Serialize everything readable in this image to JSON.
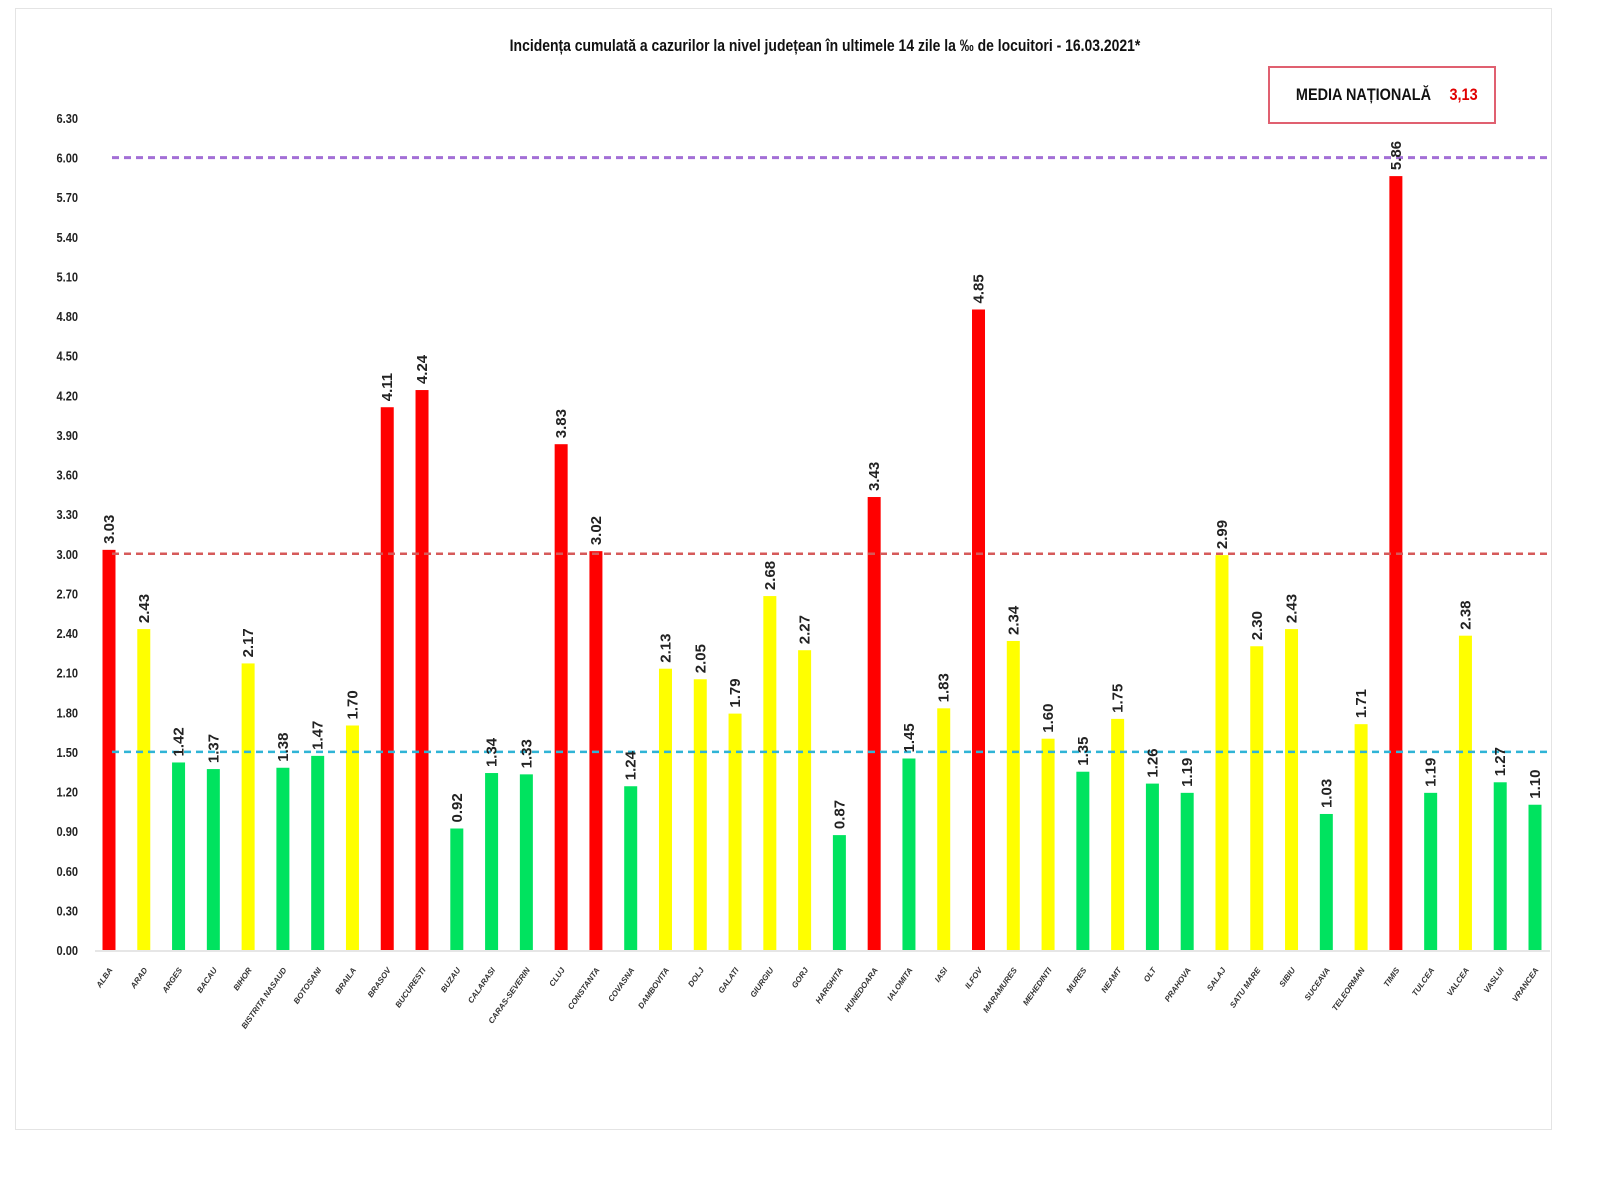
{
  "chart_data": {
    "type": "bar",
    "title": "Incidența cumulată a cazurilor la nivel județean în ultimele 14 zile la ‰ de locuitori - 16.03.2021*",
    "xlabel": "",
    "ylabel": "",
    "ylim": [
      0,
      6.3
    ],
    "yticks": [
      "0.00",
      "0.30",
      "0.60",
      "0.90",
      "1.20",
      "1.50",
      "1.80",
      "2.10",
      "2.40",
      "2.70",
      "3.00",
      "3.30",
      "3.60",
      "3.90",
      "4.20",
      "4.50",
      "4.80",
      "5.10",
      "5.40",
      "5.70",
      "6.00",
      "6.30"
    ],
    "categories": [
      "ALBA",
      "ARAD",
      "ARGES",
      "BACAU",
      "BIHOR",
      "BISTRITA NASAUD",
      "BOTOSANI",
      "BRAILA",
      "BRASOV",
      "BUCURESTI",
      "BUZAU",
      "CALARASI",
      "CARAS-SEVERIN",
      "CLUJ",
      "CONSTANTA",
      "COVASNA",
      "DAMBOVITA",
      "DOLJ",
      "GALATI",
      "GIURGIU",
      "GORJ",
      "HARGHITA",
      "HUNEDOARA",
      "IALOMITA",
      "IASI",
      "ILFOV",
      "MARAMURES",
      "MEHEDINTI",
      "MURES",
      "NEAMT",
      "OLT",
      "PRAHOVA",
      "SALAJ",
      "SATU MARE",
      "SIBIU",
      "SUCEAVA",
      "TELEORMAN",
      "TIMIS",
      "TULCEA",
      "VALCEA",
      "VASLUI",
      "VRANCEA"
    ],
    "values": [
      3.03,
      2.43,
      1.42,
      1.37,
      2.17,
      1.38,
      1.47,
      1.7,
      4.11,
      4.24,
      0.92,
      1.34,
      1.33,
      3.83,
      3.02,
      1.24,
      2.13,
      2.05,
      1.79,
      2.68,
      2.27,
      0.87,
      3.43,
      1.45,
      1.83,
      4.85,
      2.34,
      1.6,
      1.35,
      1.75,
      1.26,
      1.19,
      2.99,
      2.3,
      2.43,
      1.03,
      1.71,
      5.86,
      1.19,
      2.38,
      1.27,
      1.1
    ],
    "thresholds": [
      {
        "value": 6.0,
        "color": "#a36fd6"
      },
      {
        "value": 3.0,
        "color": "#d65a5a"
      },
      {
        "value": 1.5,
        "color": "#2fb4d6"
      }
    ],
    "colors": {
      "high": "#ff0000",
      "medium": "#ffff00",
      "low": "#00e35f"
    },
    "grid": false
  },
  "legend": {
    "label": "MEDIA NAȚIONALĂ",
    "value": "3,13"
  }
}
